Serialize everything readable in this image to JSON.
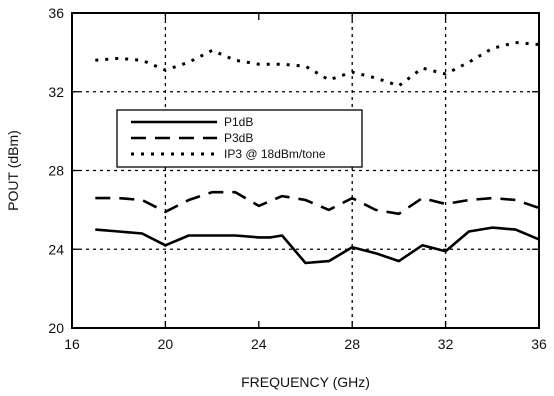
{
  "chart_data": {
    "type": "line",
    "title": "",
    "xlabel": "FREQUENCY (GHz)",
    "ylabel": "POUT (dBm)",
    "xlim": [
      16,
      36
    ],
    "ylim": [
      20,
      36
    ],
    "xticks": [
      16,
      20,
      24,
      28,
      32,
      36
    ],
    "yticks": [
      20,
      24,
      28,
      32,
      36
    ],
    "grid_x": [
      20,
      28,
      32
    ],
    "grid_y": [
      24,
      28,
      32
    ],
    "legend_position": "center-left",
    "series": [
      {
        "name": "P1dB",
        "style": "solid",
        "color": "#000000",
        "x": [
          17,
          18,
          19,
          20,
          21,
          22,
          23,
          24,
          24.5,
          25,
          26,
          27,
          28,
          29,
          30,
          31,
          32,
          33,
          34,
          35,
          36
        ],
        "y": [
          25.0,
          24.9,
          24.8,
          24.2,
          24.7,
          24.7,
          24.7,
          24.6,
          24.6,
          24.7,
          23.3,
          23.4,
          24.1,
          23.8,
          23.4,
          24.2,
          23.9,
          24.9,
          25.1,
          25.0,
          24.5
        ]
      },
      {
        "name": "P3dB",
        "style": "dashed",
        "color": "#000000",
        "x": [
          17,
          18,
          19,
          20,
          21,
          22,
          23,
          24,
          25,
          26,
          27,
          28,
          29,
          30,
          31,
          32,
          33,
          34,
          35,
          36
        ],
        "y": [
          26.6,
          26.6,
          26.5,
          25.9,
          26.5,
          26.9,
          26.9,
          26.2,
          26.7,
          26.5,
          26.0,
          26.6,
          26.0,
          25.8,
          26.6,
          26.3,
          26.5,
          26.6,
          26.5,
          26.1
        ]
      },
      {
        "name": "IP3 @ 18dBm/tone",
        "style": "dotted",
        "color": "#000000",
        "x": [
          17,
          18,
          19,
          20,
          21,
          22,
          23,
          24,
          25,
          26,
          27,
          28,
          29,
          30,
          31,
          32,
          33,
          34,
          35,
          36
        ],
        "y": [
          33.6,
          33.7,
          33.6,
          33.1,
          33.5,
          34.1,
          33.6,
          33.4,
          33.4,
          33.3,
          32.6,
          33.0,
          32.7,
          32.3,
          33.2,
          32.9,
          33.5,
          34.2,
          34.5,
          34.4
        ]
      }
    ]
  }
}
